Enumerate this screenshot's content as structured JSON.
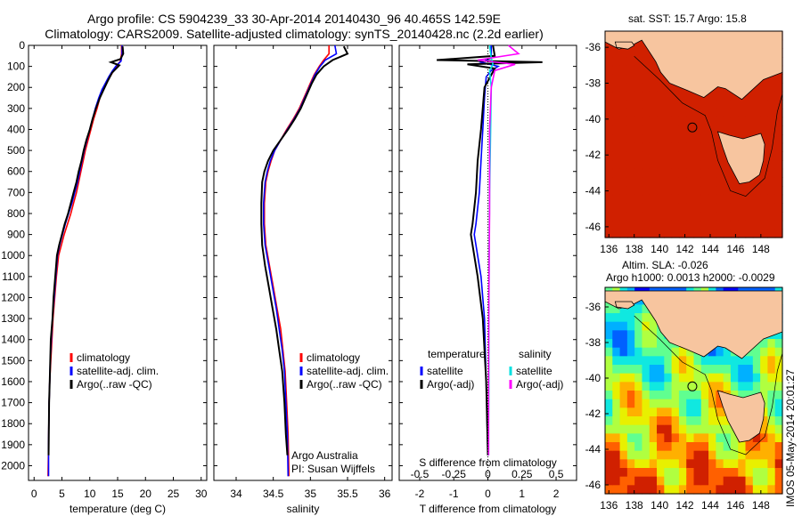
{
  "header": {
    "line1": "Argo profile: CS 5904239_33 30-Apr-2014 20140430_96 40.465S 142.59E",
    "line2": "Climatology: CARS2009. Satellite-adjusted climatology: synTS_20140428.nc (2.2d earlier)"
  },
  "maps": {
    "top_title": "sat. SST: 15.7 Argo: 15.8",
    "bottom_title_1": "Altim. SLA: -0.026",
    "bottom_title_2": "Argo h1000: 0.0013 h2000: -0.0029",
    "lon_ticks": [
      "136",
      "138",
      "140",
      "142",
      "144",
      "146",
      "148"
    ],
    "lat_ticks": [
      "-36",
      "-38",
      "-40",
      "-42",
      "-44",
      "-46"
    ],
    "float_position": {
      "lon": 142.59,
      "lat": -40.465
    },
    "colors": {
      "land": "#f7c59f",
      "coast": "#000000"
    }
  },
  "stamp": "IMOS 05-May-2014 20:01:27",
  "chart_data": [
    {
      "type": "line",
      "xlabel": "temperature (deg C)",
      "ylabel": "",
      "xlim": [
        -1,
        31
      ],
      "ylim": [
        2070,
        0
      ],
      "x_ticks": [
        0,
        5,
        10,
        15,
        20,
        25,
        30
      ],
      "y_ticks": [
        0,
        100,
        200,
        300,
        400,
        500,
        600,
        700,
        800,
        900,
        1000,
        1100,
        1200,
        1300,
        1400,
        1500,
        1600,
        1700,
        1800,
        1900,
        2000
      ],
      "legend": "center-left",
      "series": [
        {
          "name": "climatology",
          "color": "#ff0000",
          "x": [
            15.7,
            15.7,
            15.5,
            14.9,
            14.3,
            13.6,
            13.0,
            12.4,
            11.8,
            11.3,
            10.7,
            10.2,
            9.7,
            9.2,
            8.8,
            8.4,
            8.0,
            7.6,
            7.1,
            6.6,
            6.0,
            5.4,
            4.9,
            4.4,
            4.0,
            3.7,
            3.4,
            3.2,
            3.0,
            2.8,
            2.7,
            2.6,
            2.5
          ],
          "depth": [
            0,
            40,
            75,
            95,
            120,
            150,
            180,
            210,
            250,
            300,
            350,
            400,
            450,
            500,
            550,
            600,
            650,
            700,
            750,
            800,
            850,
            900,
            950,
            1000,
            1100,
            1200,
            1300,
            1400,
            1500,
            1600,
            1700,
            1900,
            2050
          ]
        },
        {
          "name": "satellite-adj. clim.",
          "color": "#0000ff",
          "x": [
            15.8,
            15.8,
            15.6,
            14.8,
            14.1,
            13.4,
            12.8,
            12.2,
            11.6,
            11.0,
            10.5,
            10.0,
            9.5,
            9.0,
            8.6,
            8.2,
            7.8,
            7.3,
            6.8,
            6.2,
            5.6,
            5.1,
            4.6,
            4.2,
            3.9,
            3.6,
            3.3,
            3.1,
            2.9,
            2.8,
            2.7,
            2.6,
            2.6
          ],
          "depth": [
            0,
            40,
            75,
            95,
            120,
            150,
            180,
            210,
            250,
            300,
            350,
            400,
            450,
            500,
            550,
            600,
            650,
            700,
            750,
            800,
            850,
            900,
            950,
            1000,
            1100,
            1200,
            1300,
            1400,
            1500,
            1600,
            1700,
            1900,
            2050
          ]
        },
        {
          "name": "Argo(..raw -QC)",
          "color": "#000000",
          "x": [
            15.9,
            16.0,
            15.5,
            13.8,
            15.3,
            14.0,
            13.2,
            12.5,
            11.8,
            11.1,
            10.5,
            10.0,
            9.4,
            8.9,
            8.5,
            8.0,
            7.6,
            7.1,
            6.6,
            6.1,
            5.5,
            5.0,
            4.5,
            4.1,
            3.8,
            3.5,
            3.3,
            3.0,
            2.9,
            2.8,
            2.7,
            2.6
          ],
          "depth": [
            5,
            40,
            65,
            80,
            95,
            130,
            170,
            210,
            250,
            300,
            350,
            400,
            450,
            500,
            550,
            600,
            650,
            700,
            750,
            800,
            850,
            900,
            950,
            1000,
            1100,
            1200,
            1300,
            1400,
            1500,
            1600,
            1700,
            1950
          ]
        }
      ]
    },
    {
      "type": "line",
      "xlabel": "salinity",
      "ylabel": "",
      "xlim": [
        33.7,
        36.1
      ],
      "ylim": [
        2070,
        0
      ],
      "x_ticks": [
        34,
        34.5,
        35,
        35.5,
        36
      ],
      "y_ticks": [
        0,
        100,
        200,
        300,
        400,
        500,
        600,
        700,
        800,
        900,
        1000,
        1100,
        1200,
        1300,
        1400,
        1500,
        1600,
        1700,
        1800,
        1900,
        2000
      ],
      "legend": "center-right",
      "annotations": [
        "Argo Australia",
        "PI: Susan Wijffels"
      ],
      "series": [
        {
          "name": "climatology",
          "color": "#ff0000",
          "x": [
            35.25,
            35.25,
            35.18,
            35.12,
            35.05,
            35.0,
            34.95,
            34.9,
            34.85,
            34.77,
            34.68,
            34.6,
            34.52,
            34.47,
            34.43,
            34.4,
            34.38,
            34.38,
            34.4,
            34.45,
            34.5,
            34.55,
            34.6,
            34.63,
            34.66,
            34.68,
            34.7,
            34.71
          ],
          "depth": [
            0,
            40,
            70,
            100,
            140,
            180,
            220,
            260,
            300,
            350,
            400,
            450,
            500,
            550,
            600,
            650,
            750,
            850,
            950,
            1050,
            1150,
            1250,
            1350,
            1450,
            1550,
            1700,
            1850,
            2050
          ]
        },
        {
          "name": "satellite-adj. clim.",
          "color": "#0000ff",
          "x": [
            35.33,
            35.35,
            35.2,
            35.13,
            35.06,
            35.01,
            34.96,
            34.91,
            34.86,
            34.78,
            34.69,
            34.6,
            34.52,
            34.46,
            34.42,
            34.39,
            34.37,
            34.37,
            34.39,
            34.44,
            34.49,
            34.54,
            34.58,
            34.62,
            34.65,
            34.67,
            34.69,
            34.7
          ],
          "depth": [
            0,
            40,
            70,
            100,
            140,
            180,
            220,
            260,
            300,
            350,
            400,
            450,
            500,
            550,
            600,
            650,
            750,
            850,
            950,
            1050,
            1150,
            1250,
            1350,
            1450,
            1550,
            1700,
            1850,
            2050
          ]
        },
        {
          "name": "Argo(..raw -QC)",
          "color": "#000000",
          "x": [
            35.45,
            35.5,
            35.3,
            35.18,
            35.08,
            35.02,
            34.97,
            34.92,
            34.87,
            34.79,
            34.7,
            34.6,
            34.5,
            34.43,
            34.38,
            34.35,
            34.34,
            34.34,
            34.35,
            34.39,
            34.44,
            34.49,
            34.54,
            34.58,
            34.62,
            34.65,
            34.67,
            34.69
          ],
          "depth": [
            5,
            40,
            70,
            100,
            140,
            180,
            220,
            260,
            300,
            350,
            400,
            450,
            500,
            550,
            600,
            650,
            750,
            850,
            950,
            1050,
            1150,
            1250,
            1350,
            1450,
            1550,
            1700,
            1850,
            1950
          ]
        }
      ]
    },
    {
      "type": "line",
      "xlabel": "T difference from climatology",
      "x2label": "S difference from climatology",
      "xlim": [
        -2.6,
        2.6
      ],
      "ylim": [
        2070,
        0
      ],
      "x_ticks": [
        -2,
        -1,
        0,
        1,
        2
      ],
      "x2_ticks": [
        "-0.5",
        "-0.25",
        "0",
        "0.25",
        "0.5"
      ],
      "y_ticks": [
        0,
        100,
        200,
        300,
        400,
        500,
        600,
        700,
        800,
        900,
        1000,
        1100,
        1200,
        1300,
        1400,
        1500,
        1600,
        1700,
        1800,
        1900,
        2000
      ],
      "legend": "center",
      "legend_headers": [
        "temperature",
        "salinity"
      ],
      "series": [
        {
          "name": "satellite",
          "group": "temperature",
          "color": "#0000ff",
          "x": [
            0.1,
            0.1,
            -0.2,
            0.3,
            0.1,
            -0.05,
            -0.1,
            -0.15,
            -0.2,
            -0.25,
            -0.35,
            -0.4,
            -0.35,
            -0.2,
            -0.1,
            -0.05,
            0
          ],
          "depth": [
            0,
            60,
            80,
            100,
            120,
            150,
            250,
            400,
            550,
            700,
            850,
            900,
            950,
            1100,
            1300,
            1600,
            1950
          ]
        },
        {
          "name": "Argo(-adj)",
          "group": "temperature",
          "color": "#000000",
          "x": [
            0.15,
            0.2,
            -1.5,
            1.6,
            -0.6,
            0.2,
            -0.1,
            -0.2,
            -0.3,
            -0.35,
            -0.45,
            -0.5,
            -0.45,
            -0.3,
            -0.15,
            -0.05,
            0
          ],
          "depth": [
            0,
            50,
            70,
            80,
            90,
            110,
            200,
            400,
            550,
            700,
            850,
            900,
            950,
            1100,
            1300,
            1600,
            1950
          ]
        },
        {
          "name": "satellite",
          "group": "salinity",
          "color": "#00e0e0",
          "x": [
            0.05,
            0.1,
            0.15,
            0.05,
            0.1,
            0.08,
            0.05,
            0.04,
            0.03,
            0.03,
            0.02,
            0.02
          ],
          "depth": [
            0,
            60,
            90,
            120,
            200,
            400,
            700,
            1000,
            1300,
            1600,
            1800,
            1950
          ]
        },
        {
          "name": "Argo(-adj)",
          "group": "salinity",
          "color": "#ff00ff",
          "x": [
            0.6,
            0.9,
            -0.3,
            0.8,
            0.2,
            0.1,
            0.05,
            0.05,
            0.03,
            0.02,
            0.02
          ],
          "depth": [
            0,
            40,
            70,
            90,
            120,
            200,
            400,
            800,
            1200,
            1600,
            1950
          ]
        }
      ]
    }
  ]
}
